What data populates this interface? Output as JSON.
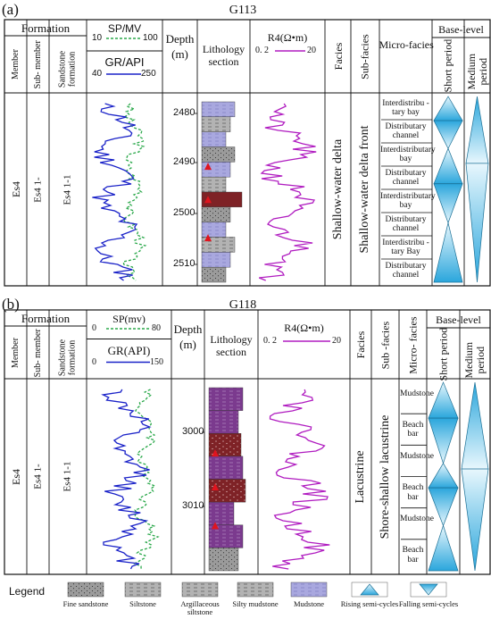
{
  "panels": [
    {
      "id": "a",
      "label": "(a)",
      "well": "G113",
      "headers": {
        "formation": "Formation",
        "member": "Member",
        "submember": "Sub- member",
        "sandstone": "Sandstone formation",
        "curve1_name": "SP/MV",
        "curve1_min": "10",
        "curve1_max": "100",
        "curve2_name": "GR/API",
        "curve2_min": "40",
        "curve2_max": "250",
        "depth": "Depth (m)",
        "lithology": "Lithology section",
        "resistivity": "R4(Ω•m)",
        "res_min": "0. 2",
        "res_max": "20",
        "facies": "Facies",
        "subfacies": "Sub-facies",
        "microfacies": "Micro-facies",
        "baselevel": "Base-level",
        "short": "Short period",
        "medium": "Medium period"
      },
      "member_value": "Es4",
      "submember_value": "Es4 1-",
      "sandstone_value": "Es4 1-1",
      "depth_ticks": [
        "2480",
        "2490",
        "2500",
        "2510"
      ],
      "facies_value": "Shallow-water delta",
      "subfacies_value": "Shallow-water delta front",
      "microfacies": [
        "Interdistribu -tary bay",
        "Distributary channel",
        "Interdistributary bay",
        "Distributary channel",
        "Interdistributary bay",
        "Distributary channel",
        "Interdistribu -tary Bay",
        "Distributary channel"
      ]
    },
    {
      "id": "b",
      "label": "(b)",
      "well": "G118",
      "headers": {
        "formation": "Formation",
        "member": "Member",
        "submember": "Sub- member",
        "sandstone": "Sandstone formation",
        "curve1_name": "SP(mv)",
        "curve1_min": "0",
        "curve1_max": "80",
        "curve2_name": "GR(API)",
        "curve2_min": "0",
        "curve2_max": "150",
        "depth": "Depth (m)",
        "lithology": "Lithology section",
        "resistivity": "R4(Ω•m)",
        "res_min": "0. 2",
        "res_max": "20",
        "facies": "Facies",
        "subfacies": "Sub -facies",
        "microfacies": "Micro- facies",
        "baselevel": "Base-level",
        "short": "Short period",
        "medium": "Medium period"
      },
      "member_value": "Es4",
      "submember_value": "Es4 1-",
      "sandstone_value": "Es4 1-1",
      "depth_ticks": [
        "3000",
        "3010"
      ],
      "facies_value": "Lacustrine",
      "subfacies_value": "Shore-shallow lacustrine",
      "microfacies": [
        "Mudstone",
        "Beach bar",
        "Mudstone",
        "Beach bar",
        "Mudstone",
        "Beach bar"
      ]
    }
  ],
  "legend": {
    "title": "Legend",
    "items": [
      "Fine sandstone",
      "Siltstone",
      "Argillaceous siltstone",
      "Silty mudstone",
      "Mudstone",
      "Rising semi-cycles",
      "Falling semi-cycles"
    ]
  },
  "colors": {
    "sp_curve": "#2aa84a",
    "gr_curve": "#1a22c8",
    "res_curve": "#b01cc0",
    "cycle_blue": "#2aa6dc",
    "mudstone_a": "#a9a8df",
    "mudstone_b": "#7b3a8e",
    "fine_sand_b": "#7e2226",
    "sand_gray": "#9a9a9a",
    "arrow_red": "#e0141e"
  }
}
